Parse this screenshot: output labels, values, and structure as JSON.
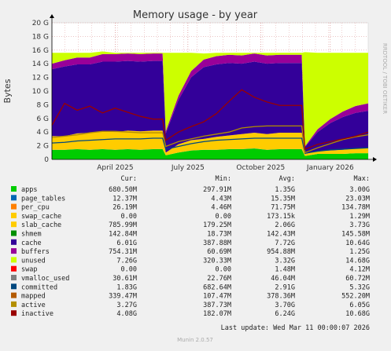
{
  "chart_data": {
    "type": "area",
    "title": "Memory usage - by year",
    "ylabel": "Bytes",
    "side_label": "RRDTOOL / TOBI OETIKER",
    "ylim": [
      0,
      20
    ],
    "y_ticks": [
      "0",
      "2 G",
      "4 G",
      "6 G",
      "8 G",
      "10 G",
      "12 G",
      "14 G",
      "16 G",
      "18 G",
      "20 G"
    ],
    "x_ticks": [
      {
        "label": "April 2025",
        "t": 0.2
      },
      {
        "label": "July 2025",
        "t": 0.43
      },
      {
        "label": "October 2025",
        "t": 0.66
      },
      {
        "label": "January 2026",
        "t": 0.88
      }
    ],
    "x": [
      0.0,
      0.04,
      0.08,
      0.12,
      0.16,
      0.2,
      0.24,
      0.28,
      0.32,
      0.35,
      0.36,
      0.4,
      0.44,
      0.48,
      0.52,
      0.56,
      0.6,
      0.64,
      0.68,
      0.72,
      0.76,
      0.79,
      0.8,
      0.84,
      0.88,
      0.92,
      0.96,
      1.0
    ],
    "stacked_series": [
      {
        "name": "apps",
        "color": "#00cc00",
        "values": [
          1.4,
          1.4,
          1.5,
          1.4,
          1.5,
          1.4,
          1.5,
          1.4,
          1.5,
          1.5,
          0.6,
          1.0,
          1.3,
          1.4,
          1.4,
          1.5,
          1.5,
          1.6,
          1.4,
          1.5,
          1.5,
          1.5,
          0.5,
          0.8,
          0.8,
          0.8,
          0.9,
          0.9
        ]
      },
      {
        "name": "page_tables",
        "color": "#0066b3",
        "values": [
          0.01,
          0.01,
          0.01,
          0.01,
          0.01,
          0.01,
          0.01,
          0.01,
          0.01,
          0.01,
          0.01,
          0.01,
          0.01,
          0.01,
          0.01,
          0.01,
          0.01,
          0.01,
          0.01,
          0.01,
          0.01,
          0.01,
          0.01,
          0.01,
          0.01,
          0.01,
          0.01,
          0.01
        ]
      },
      {
        "name": "slab_cache",
        "color": "#ffcc00",
        "values": [
          2.0,
          2.0,
          2.3,
          2.5,
          2.6,
          2.6,
          2.7,
          2.7,
          2.7,
          2.7,
          0.4,
          1.2,
          1.5,
          1.6,
          1.9,
          2.0,
          2.2,
          2.3,
          2.3,
          2.4,
          2.4,
          2.4,
          0.3,
          0.4,
          0.5,
          0.6,
          0.7,
          0.8
        ]
      },
      {
        "name": "cache",
        "color": "#330099",
        "values": [
          9.8,
          10.2,
          10.1,
          10.0,
          10.2,
          10.3,
          10.2,
          10.2,
          10.2,
          10.2,
          2.8,
          6.5,
          9.2,
          10.5,
          10.6,
          10.6,
          10.3,
          10.4,
          10.3,
          10.2,
          10.2,
          10.2,
          1.0,
          2.8,
          4.0,
          4.8,
          5.2,
          5.4
        ]
      },
      {
        "name": "buffers",
        "color": "#990099",
        "values": [
          0.8,
          0.9,
          1.0,
          1.0,
          1.1,
          1.1,
          1.1,
          1.1,
          1.1,
          1.1,
          0.3,
          0.6,
          0.9,
          1.1,
          1.2,
          1.2,
          1.2,
          1.2,
          1.2,
          1.2,
          1.2,
          1.2,
          0.1,
          0.4,
          0.6,
          0.8,
          1.0,
          1.1
        ]
      },
      {
        "name": "unused",
        "color": "#ccff00",
        "values": [
          1.6,
          1.1,
          0.7,
          0.7,
          0.4,
          0.2,
          0.1,
          0.2,
          0.1,
          0.1,
          11.5,
          6.3,
          2.7,
          0.9,
          0.5,
          0.3,
          0.4,
          0.1,
          0.4,
          0.3,
          0.3,
          0.3,
          13.8,
          11.2,
          9.7,
          8.6,
          7.8,
          7.4
        ]
      }
    ],
    "line_series": [
      {
        "name": "committed",
        "color": "#00487f",
        "values": [
          2.4,
          2.5,
          2.7,
          2.8,
          2.9,
          3.0,
          3.0,
          3.0,
          3.1,
          3.1,
          1.5,
          1.9,
          2.3,
          2.6,
          2.8,
          2.9,
          3.0,
          3.1,
          3.1,
          3.1,
          3.1,
          3.1,
          0.9,
          1.2,
          1.4,
          1.5,
          1.6,
          1.7
        ]
      },
      {
        "name": "active",
        "color": "#b38f00",
        "values": [
          3.2,
          3.4,
          3.6,
          3.9,
          4.1,
          4.1,
          4.0,
          3.9,
          3.9,
          3.9,
          1.9,
          2.6,
          3.0,
          3.4,
          3.7,
          4.0,
          4.6,
          4.8,
          4.9,
          4.9,
          4.9,
          4.9,
          1.0,
          1.7,
          2.3,
          2.9,
          3.3,
          3.6
        ]
      },
      {
        "name": "inactive",
        "color": "#990000",
        "values": [
          5.0,
          8.2,
          7.2,
          7.8,
          6.8,
          7.5,
          6.9,
          6.3,
          5.9,
          5.9,
          2.8,
          4.0,
          4.8,
          5.5,
          6.7,
          8.5,
          10.2,
          9.1,
          8.4,
          7.9,
          7.9,
          7.9,
          1.5,
          2.2,
          2.6,
          3.0,
          3.4,
          4.0
        ]
      }
    ],
    "legend": [
      {
        "name": "apps",
        "color": "#00cc00",
        "cur": "680.50M",
        "min": "297.91M",
        "avg": "1.35G",
        "max": "3.00G"
      },
      {
        "name": "page_tables",
        "color": "#0066b3",
        "cur": "12.37M",
        "min": "4.43M",
        "avg": "15.35M",
        "max": "23.03M"
      },
      {
        "name": "per_cpu",
        "color": "#ff8000",
        "cur": "26.19M",
        "min": "4.46M",
        "avg": "71.75M",
        "max": "134.78M"
      },
      {
        "name": "swap_cache",
        "color": "#ffcc00",
        "cur": "0.00",
        "min": "0.00",
        "avg": "173.15k",
        "max": "1.29M"
      },
      {
        "name": "slab_cache",
        "color": "#ffcc00",
        "cur": "785.99M",
        "min": "179.25M",
        "avg": "2.06G",
        "max": "3.73G"
      },
      {
        "name": "shmem",
        "color": "#008f00",
        "cur": "142.84M",
        "min": "18.73M",
        "avg": "142.43M",
        "max": "145.58M"
      },
      {
        "name": "cache",
        "color": "#330099",
        "cur": "6.01G",
        "min": "387.88M",
        "avg": "7.72G",
        "max": "10.64G"
      },
      {
        "name": "buffers",
        "color": "#990099",
        "cur": "754.31M",
        "min": "60.69M",
        "avg": "954.88M",
        "max": "1.25G"
      },
      {
        "name": "unused",
        "color": "#ccff00",
        "cur": "7.26G",
        "min": "320.33M",
        "avg": "3.32G",
        "max": "14.68G"
      },
      {
        "name": "swap",
        "color": "#ff0000",
        "cur": "0.00",
        "min": "0.00",
        "avg": "1.48M",
        "max": "4.12M"
      },
      {
        "name": "vmalloc_used",
        "color": "#808080",
        "cur": "30.61M",
        "min": "22.76M",
        "avg": "46.04M",
        "max": "60.72M"
      },
      {
        "name": "committed",
        "color": "#00487f",
        "cur": "1.83G",
        "min": "682.64M",
        "avg": "2.91G",
        "max": "5.32G"
      },
      {
        "name": "mapped",
        "color": "#b35a00",
        "cur": "339.47M",
        "min": "107.47M",
        "avg": "378.36M",
        "max": "552.20M"
      },
      {
        "name": "active",
        "color": "#b38f00",
        "cur": "3.27G",
        "min": "387.73M",
        "avg": "3.70G",
        "max": "6.05G"
      },
      {
        "name": "inactive",
        "color": "#990000",
        "cur": "4.08G",
        "min": "182.07M",
        "avg": "6.24G",
        "max": "10.68G"
      }
    ],
    "legend_headers": {
      "cur": "Cur:",
      "min": "Min:",
      "avg": "Avg:",
      "max": "Max:"
    },
    "last_update": "Last update: Wed Mar 11 00:00:07 2026",
    "footer": "Munin 2.0.57"
  }
}
